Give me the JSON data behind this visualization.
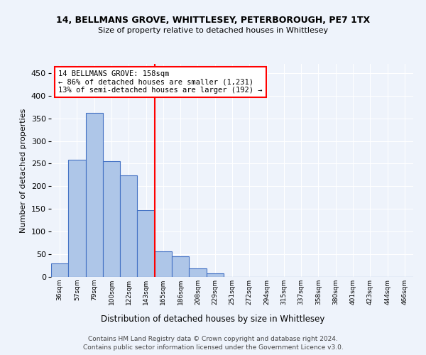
{
  "title": "14, BELLMANS GROVE, WHITTLESEY, PETERBOROUGH, PE7 1TX",
  "subtitle": "Size of property relative to detached houses in Whittlesey",
  "xlabel": "Distribution of detached houses by size in Whittlesey",
  "ylabel": "Number of detached properties",
  "bar_labels": [
    "36sqm",
    "57sqm",
    "79sqm",
    "100sqm",
    "122sqm",
    "143sqm",
    "165sqm",
    "186sqm",
    "208sqm",
    "229sqm",
    "251sqm",
    "272sqm",
    "294sqm",
    "315sqm",
    "337sqm",
    "358sqm",
    "380sqm",
    "401sqm",
    "423sqm",
    "444sqm",
    "466sqm"
  ],
  "bar_values": [
    30,
    258,
    362,
    255,
    224,
    148,
    57,
    46,
    19,
    8,
    0,
    0,
    0,
    0,
    0,
    0,
    0,
    0,
    0,
    0,
    0
  ],
  "bar_color": "#aec6e8",
  "bar_edge_color": "#4472c4",
  "background_color": "#eef3fb",
  "annotation_text": "14 BELLMANS GROVE: 158sqm\n← 86% of detached houses are smaller (1,231)\n13% of semi-detached houses are larger (192) →",
  "annotation_box_color": "white",
  "annotation_box_edge_color": "red",
  "footer_line1": "Contains HM Land Registry data © Crown copyright and database right 2024.",
  "footer_line2": "Contains public sector information licensed under the Government Licence v3.0.",
  "ylim": [
    0,
    470
  ],
  "yticks": [
    0,
    50,
    100,
    150,
    200,
    250,
    300,
    350,
    400,
    450
  ],
  "red_line_index": 5.5
}
